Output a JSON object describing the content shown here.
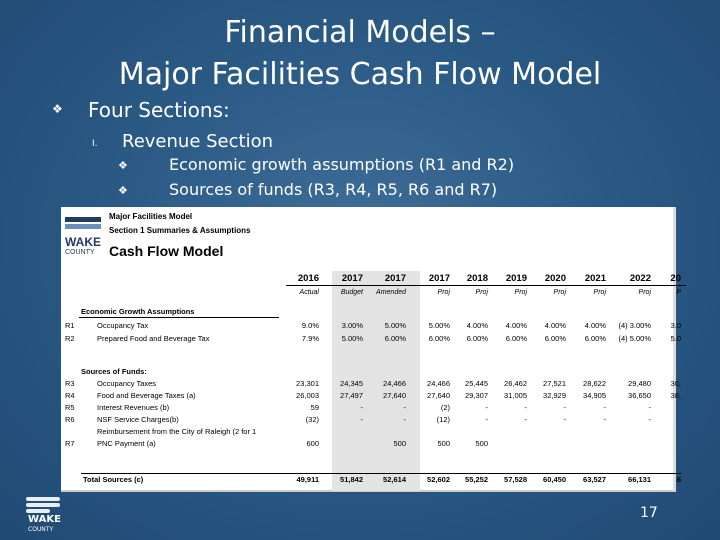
{
  "slide": {
    "title_line1": "Financial Models –",
    "title_line2": "Major Facilities Cash Flow Model",
    "bullet1_icon": "diamond-bullet-icon",
    "bullet1": "Four Sections:",
    "sub_number": "I.",
    "sub_text": "Revenue Section",
    "items": [
      "Economic growth assumptions (R1 and R2)",
      "Sources of funds (R3, R4, R5, R6 and R7)"
    ],
    "page_number": "17",
    "footer_logo_text": "WAKE",
    "footer_logo_sub": "COUNTY"
  },
  "sheet": {
    "logo_text": "WAKE",
    "logo_sub": "COUNTY",
    "header1": "Major Facilities Model",
    "header2": "Section 1   Summaries & Assumptions",
    "title": "Cash Flow Model",
    "years": [
      "2016",
      "2017",
      "2017",
      "2017",
      "2018",
      "2019",
      "2020",
      "2021",
      "2022",
      "20"
    ],
    "year_labels": [
      "Actual",
      "Budget",
      "Amended",
      "Proj",
      "Proj",
      "Proj",
      "Proj",
      "Proj",
      "Proj",
      "P"
    ],
    "econ_header": "Economic Growth Assumptions",
    "econ_rows": [
      {
        "id": "R1",
        "name": "Occupancy Tax",
        "vals": [
          "9.0%",
          "3.00%",
          "5.00%",
          "5.00%",
          "4.00%",
          "4.00%",
          "4.00%",
          "4.00%",
          "(4) 3.00%",
          "3.0"
        ]
      },
      {
        "id": "R2",
        "name": "Prepared Food and Beverage Tax",
        "vals": [
          "7.9%",
          "5.00%",
          "6.00%",
          "6.00%",
          "6.00%",
          "6.00%",
          "6.00%",
          "6.00%",
          "(4) 5.00%",
          "5.0"
        ]
      }
    ],
    "sources_header": "Sources of Funds:",
    "source_rows": [
      {
        "id": "R3",
        "name": "Occupancy Taxes",
        "vals": [
          "23,301",
          "24,345",
          "24,466",
          "24,466",
          "25,445",
          "26,462",
          "27,521",
          "28,622",
          "29,480",
          "30,"
        ]
      },
      {
        "id": "R4",
        "name": "Food and Beverage Taxes (a)",
        "vals": [
          "26,003",
          "27,497",
          "27,640",
          "27,640",
          "29,307",
          "31,005",
          "32,929",
          "34,905",
          "36,650",
          "38,"
        ]
      },
      {
        "id": "R5",
        "name": "Interest Revenues (b)",
        "vals": [
          "59",
          "-",
          "-",
          "(2)",
          "-",
          "-",
          "-",
          "-",
          "-",
          ""
        ]
      },
      {
        "id": "R6",
        "name": "NSF Service Charges(b)",
        "vals": [
          "(32)",
          "-",
          "-",
          "(12)",
          "-",
          "-",
          "-",
          "-",
          "-",
          ""
        ]
      },
      {
        "id": "",
        "name": "Reimbursement from the City of Raleigh (2 for 1",
        "vals": [
          "",
          "",
          "",
          "",
          "",
          "",
          "",
          "",
          "",
          ""
        ]
      },
      {
        "id": "R7",
        "name": "PNC Payment (a)",
        "vals": [
          "600",
          "",
          "500",
          "500",
          "500",
          "",
          "",
          "",
          "",
          ""
        ]
      }
    ],
    "total_label": "Total Sources (c)",
    "total_vals": [
      "49,911",
      "51,842",
      "52,614",
      "52,602",
      "55,252",
      "57,528",
      "60,450",
      "63,527",
      "66,131",
      "6"
    ]
  }
}
